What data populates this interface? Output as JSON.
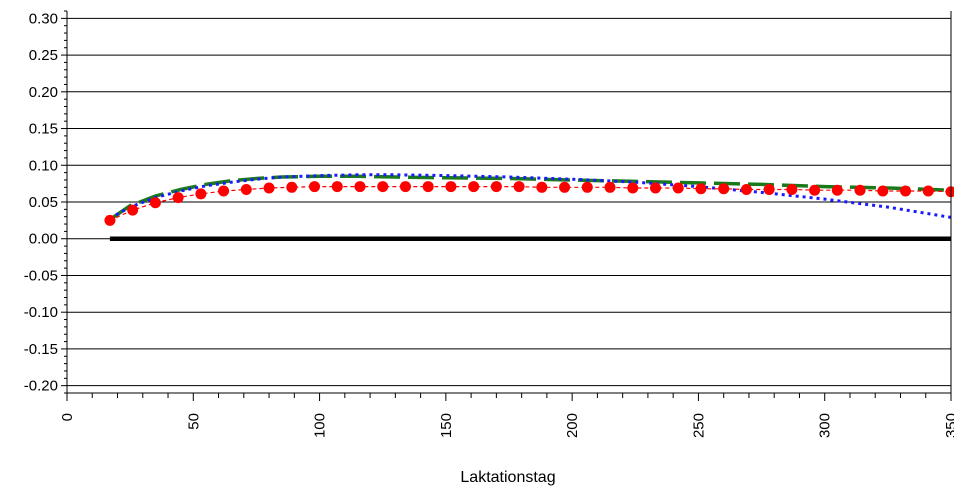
{
  "chart_data": {
    "type": "line",
    "title": "",
    "xlabel": "Laktationstag",
    "ylabel": "",
    "xlim": [
      0,
      350
    ],
    "ylim": [
      -0.21,
      0.31
    ],
    "x_ticks": [
      0,
      50,
      100,
      150,
      200,
      250,
      300,
      350
    ],
    "x_tick_labels": [
      "0",
      "50",
      "100",
      "150",
      "200",
      "250",
      "300",
      "350"
    ],
    "y_ticks": [
      0.3,
      0.25,
      0.2,
      0.15,
      0.1,
      0.05,
      0.0,
      -0.05,
      -0.1,
      -0.15,
      -0.2
    ],
    "y_tick_labels": [
      "0.30",
      "0.25",
      "0.20",
      "0.15",
      "0.10",
      "0.05",
      "0.00",
      "-0.05",
      "-0.10",
      "-0.15",
      "-0.20"
    ],
    "grid": "horizontal",
    "legend": "none",
    "series": [
      {
        "style": "solid-thick",
        "color": "#000000",
        "x": [
          17,
          350
        ],
        "y": [
          0.0,
          0.0
        ]
      },
      {
        "style": "dashed",
        "color": "#1a7a1a",
        "x": [
          17,
          25,
          35,
          45,
          55,
          65,
          75,
          85,
          100,
          115,
          130,
          150,
          175,
          200,
          225,
          250,
          275,
          300,
          325,
          350
        ],
        "y": [
          0.026,
          0.045,
          0.058,
          0.067,
          0.074,
          0.079,
          0.082,
          0.084,
          0.085,
          0.085,
          0.084,
          0.083,
          0.082,
          0.08,
          0.078,
          0.076,
          0.074,
          0.071,
          0.069,
          0.066
        ]
      },
      {
        "style": "dotted",
        "color": "#1a1aff",
        "x": [
          17,
          25,
          35,
          45,
          55,
          65,
          75,
          85,
          100,
          115,
          130,
          150,
          175,
          200,
          225,
          250,
          275,
          300,
          325,
          350
        ],
        "y": [
          0.028,
          0.043,
          0.056,
          0.065,
          0.072,
          0.077,
          0.081,
          0.084,
          0.086,
          0.087,
          0.087,
          0.086,
          0.084,
          0.081,
          0.077,
          0.071,
          0.063,
          0.054,
          0.043,
          0.029
        ]
      },
      {
        "style": "dashed-markers",
        "color": "#ff0000",
        "x": [
          17,
          26,
          35,
          44,
          53,
          62,
          71,
          80,
          89,
          98,
          107,
          116,
          125,
          134,
          143,
          152,
          161,
          170,
          179,
          188,
          197,
          206,
          215,
          224,
          233,
          242,
          251,
          260,
          269,
          278,
          287,
          296,
          305,
          314,
          323,
          332,
          341,
          350
        ],
        "y": [
          0.025,
          0.039,
          0.049,
          0.056,
          0.061,
          0.065,
          0.067,
          0.069,
          0.07,
          0.071,
          0.071,
          0.071,
          0.071,
          0.071,
          0.071,
          0.071,
          0.071,
          0.071,
          0.071,
          0.07,
          0.07,
          0.07,
          0.07,
          0.069,
          0.069,
          0.069,
          0.068,
          0.068,
          0.067,
          0.067,
          0.067,
          0.066,
          0.066,
          0.066,
          0.065,
          0.065,
          0.065,
          0.064
        ]
      }
    ]
  }
}
